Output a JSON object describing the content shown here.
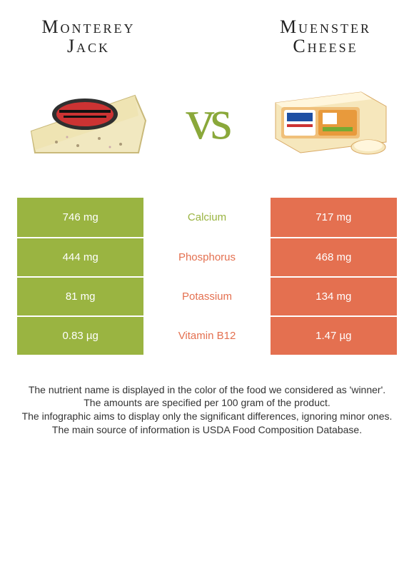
{
  "left_food": {
    "title_line1": "Monterey",
    "title_line2": "Jack"
  },
  "right_food": {
    "title_line1": "Muenster",
    "title_line2": "Cheese"
  },
  "vs_label": "vs",
  "colors": {
    "left_bg": "#9ab441",
    "right_bg": "#e47050",
    "left_text": "#ffffff",
    "right_text": "#ffffff",
    "mid_bg": "#ffffff",
    "winner_left": "#9ab441",
    "winner_right": "#e47050"
  },
  "rows": [
    {
      "nutrient": "Calcium",
      "left": "746 mg",
      "right": "717 mg",
      "winner": "left"
    },
    {
      "nutrient": "Phosphorus",
      "left": "444 mg",
      "right": "468 mg",
      "winner": "right"
    },
    {
      "nutrient": "Potassium",
      "left": "81 mg",
      "right": "134 mg",
      "winner": "right"
    },
    {
      "nutrient": "Vitamin B12",
      "left": "0.83 µg",
      "right": "1.47 µg",
      "winner": "right"
    }
  ],
  "notes": [
    "The nutrient name is displayed in the color of the food we considered as 'winner'.",
    "The amounts are specified per 100 gram of the product.",
    "The infographic aims to display only the significant differences, ignoring minor ones.",
    "The main source of information is USDA Food Composition Database."
  ]
}
